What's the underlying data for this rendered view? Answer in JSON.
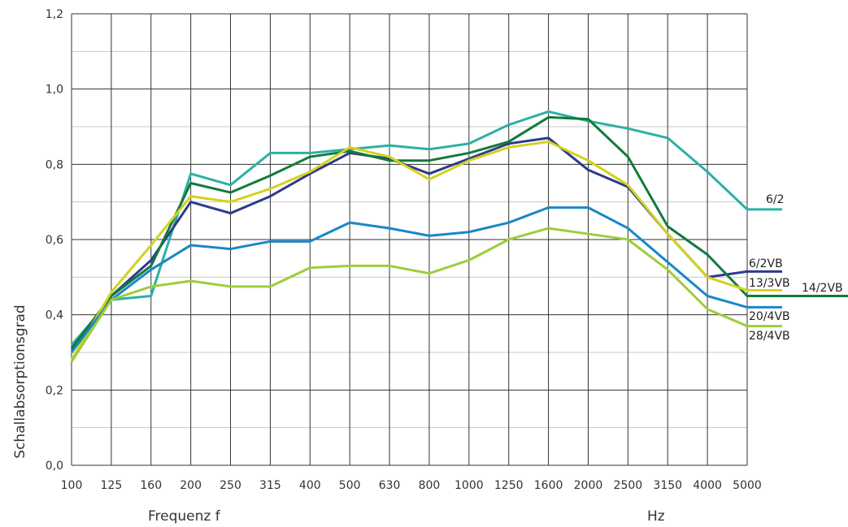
{
  "chart_data": {
    "type": "line",
    "title": "",
    "xlabel": "Frequenz f",
    "xunit": "Hz",
    "ylabel": "Schallabsorptionsgrad",
    "x": [
      "100",
      "125",
      "160",
      "200",
      "250",
      "315",
      "400",
      "500",
      "630",
      "800",
      "1000",
      "1250",
      "1600",
      "2000",
      "2500",
      "3150",
      "4000",
      "5000"
    ],
    "ylim": [
      0,
      1.2
    ],
    "yticks": [
      "0,0",
      "0,2",
      "0,4",
      "0,6",
      "0,8",
      "1,0",
      "1,2"
    ],
    "grid": true,
    "legend": "inline-right",
    "series": [
      {
        "name": "6/2",
        "color": "#2bb0a6",
        "values": [
          0.32,
          0.44,
          0.45,
          0.775,
          0.745,
          0.83,
          0.83,
          0.84,
          0.85,
          0.84,
          0.855,
          0.905,
          0.94,
          0.915,
          0.895,
          0.87,
          0.78,
          0.68
        ]
      },
      {
        "name": "6/2VB",
        "color": "#2e3b8a",
        "values": [
          0.3,
          0.45,
          0.545,
          0.7,
          0.67,
          0.715,
          0.775,
          0.83,
          0.815,
          0.775,
          0.815,
          0.855,
          0.87,
          0.785,
          0.74,
          0.615,
          0.5,
          0.515
        ]
      },
      {
        "name": "14/2VB",
        "color": "#127a3c",
        "values": [
          0.31,
          0.45,
          0.53,
          0.75,
          0.725,
          0.77,
          0.82,
          0.835,
          0.81,
          0.81,
          0.83,
          0.86,
          0.925,
          0.92,
          0.82,
          0.635,
          0.56,
          0.45
        ]
      },
      {
        "name": "13/3VB",
        "color": "#d3d21f",
        "values": [
          0.28,
          0.46,
          0.585,
          0.715,
          0.7,
          0.735,
          0.78,
          0.845,
          0.82,
          0.76,
          0.81,
          0.845,
          0.86,
          0.81,
          0.745,
          0.615,
          0.5,
          0.465
        ]
      },
      {
        "name": "20/4VB",
        "color": "#1a87c5",
        "values": [
          0.3,
          0.44,
          0.52,
          0.585,
          0.575,
          0.595,
          0.595,
          0.645,
          0.63,
          0.61,
          0.62,
          0.645,
          0.685,
          0.685,
          0.63,
          0.54,
          0.45,
          0.42
        ]
      },
      {
        "name": "28/4VB",
        "color": "#9fcc3c",
        "values": [
          0.275,
          0.44,
          0.475,
          0.49,
          0.475,
          0.475,
          0.525,
          0.53,
          0.53,
          0.51,
          0.545,
          0.6,
          0.63,
          0.615,
          0.6,
          0.52,
          0.415,
          0.37
        ]
      }
    ]
  }
}
